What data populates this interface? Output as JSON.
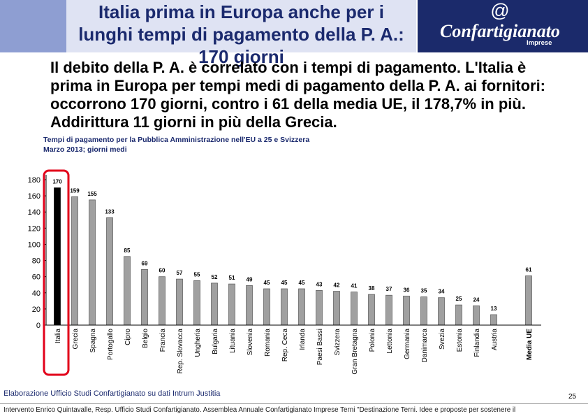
{
  "theme": {
    "strip": "#8e9ed2",
    "banner": "#dfe3f3",
    "logo_bg": "#1b2a6b",
    "title": "#1b2a6e"
  },
  "header": {
    "title_lines": [
      "Italia prima in Europa anche per i",
      "lunghi tempi di pagamento della P. A.:",
      "170 giorni"
    ]
  },
  "logo": {
    "symbol": "@",
    "name": "Confartigianato",
    "tagline": "Imprese"
  },
  "body": {
    "lines": [
      "Il debito della P. A. è correlato con i tempi di pagamento. L'Italia è",
      "prima in Europa per tempi medi di pagamento della P. A. ai fornitori:",
      "occorrono 170 giorni, contro i 61 della media UE, il 178,7% in più.",
      "Addirittura 11 giorni in più della Grecia."
    ]
  },
  "chart_data": {
    "type": "bar",
    "title": "Tempi di pagamento per la Pubblica Amministrazione nell'EU a 25 e Svizzera",
    "subtitle": "Marzo 2013; giorni medi",
    "categories": [
      "Italia",
      "Grecia",
      "Spagna",
      "Portogallo",
      "Cipro",
      "Belgio",
      "Francia",
      "Rep. Slovacca",
      "Ungheria",
      "Bulgaria",
      "Lituania",
      "Slovenia",
      "Romania",
      "Rep. Ceca",
      "Irlanda",
      "Paesi Bassi",
      "Svizzera",
      "Gran Bretagna",
      "Polonia",
      "Lettonia",
      "Germania",
      "Danimarca",
      "Svezia",
      "Estonia",
      "Finlandia",
      "Austria",
      "Media UE"
    ],
    "values": [
      170,
      159,
      155,
      133,
      85,
      69,
      60,
      57,
      55,
      52,
      51,
      49,
      45,
      45,
      45,
      43,
      42,
      41,
      38,
      37,
      36,
      35,
      34,
      25,
      24,
      13,
      61
    ],
    "ylim": [
      0,
      180
    ],
    "yticks": [
      0,
      20,
      40,
      60,
      80,
      100,
      120,
      140,
      160,
      180
    ],
    "grid": false,
    "highlight": "Italia",
    "colors": {
      "bar": "#a0a0a0",
      "bar_outline": "#555555",
      "highlight_bar": "#000000",
      "highlight_box": "#e2001a"
    }
  },
  "source": "Elaborazione Ufficio Studi Confartigianato su dati Intrum Justitia",
  "page_number": "25",
  "footer": "Intervento Enrico Quintavalle, Resp. Ufficio Studi Confartigianato. Assemblea Annuale Confartigianato Imprese Terni \"Destinazione Terni. Idee e proposte per sostenere il"
}
